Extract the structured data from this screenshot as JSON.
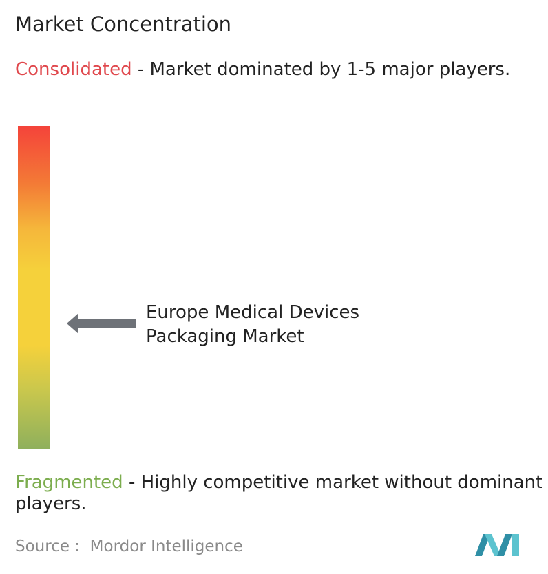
{
  "header": {
    "title": "Market Concentration"
  },
  "consolidated": {
    "label": "Consolidated",
    "description": " - Market dominated by 1-5 major players."
  },
  "marker": {
    "label": "Europe Medical Devices Packaging Market"
  },
  "fragmented": {
    "label": "Fragmented",
    "description": " - Highly competitive market without dominant players."
  },
  "footer": {
    "source": "Source :  Mordor Intelligence"
  }
}
